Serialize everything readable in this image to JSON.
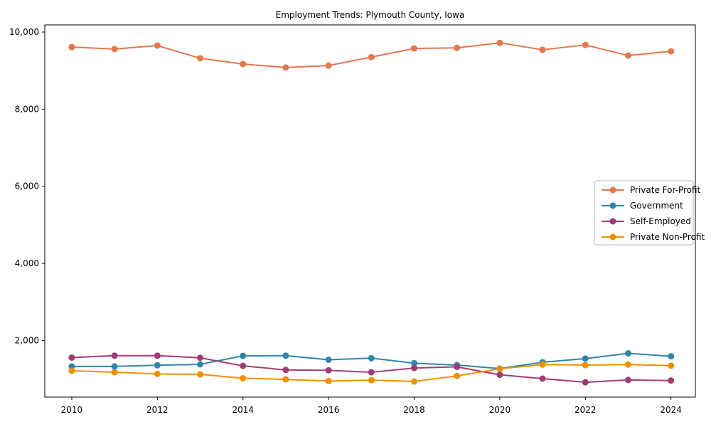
{
  "figure": {
    "background": "#ffffff",
    "spine_color": "#000000",
    "legend_border_color": "#b8b8b8"
  },
  "chart_data": {
    "type": "line",
    "title": "Employment Trends: Plymouth County, Iowa",
    "xlabel": "",
    "ylabel": "",
    "x": [
      2010,
      2011,
      2012,
      2013,
      2014,
      2015,
      2016,
      2017,
      2018,
      2019,
      2020,
      2021,
      2022,
      2023,
      2024
    ],
    "series": [
      {
        "name": "Private For-Profit",
        "color": "#E8764B",
        "marker": "circle",
        "values": [
          9610,
          9560,
          9650,
          9320,
          9170,
          9080,
          9130,
          9350,
          9575,
          9590,
          9720,
          9540,
          9665,
          9390,
          9500
        ]
      },
      {
        "name": "Government",
        "color": "#2E86AB",
        "marker": "circle",
        "values": [
          1325,
          1325,
          1355,
          1380,
          1600,
          1605,
          1500,
          1540,
          1410,
          1360,
          1270,
          1435,
          1530,
          1665,
          1590
        ]
      },
      {
        "name": "Self-Employed",
        "color": "#A23B72",
        "marker": "circle",
        "values": [
          1555,
          1605,
          1605,
          1550,
          1340,
          1235,
          1225,
          1175,
          1285,
          1315,
          1110,
          1010,
          915,
          975,
          960
        ]
      },
      {
        "name": "Private Non-Profit",
        "color": "#F18F01",
        "marker": "circle",
        "values": [
          1215,
          1175,
          1130,
          1120,
          1020,
          990,
          945,
          970,
          935,
          1080,
          1265,
          1375,
          1360,
          1375,
          1345
        ]
      }
    ],
    "xticks": {
      "values": [
        2010,
        2012,
        2014,
        2016,
        2018,
        2020,
        2022,
        2024
      ],
      "labels": [
        "2010",
        "2012",
        "2014",
        "2016",
        "2018",
        "2020",
        "2022",
        "2024"
      ]
    },
    "yticks": {
      "values": [
        2000,
        4000,
        6000,
        8000,
        10000
      ],
      "labels": [
        "2,000",
        "4,000",
        "6,000",
        "8,000",
        "10,000"
      ]
    },
    "xlim": [
      2009.37,
      2024.57
    ],
    "ylim": [
      530,
      10185
    ],
    "grid": false,
    "legend": {
      "position": "center right"
    }
  }
}
